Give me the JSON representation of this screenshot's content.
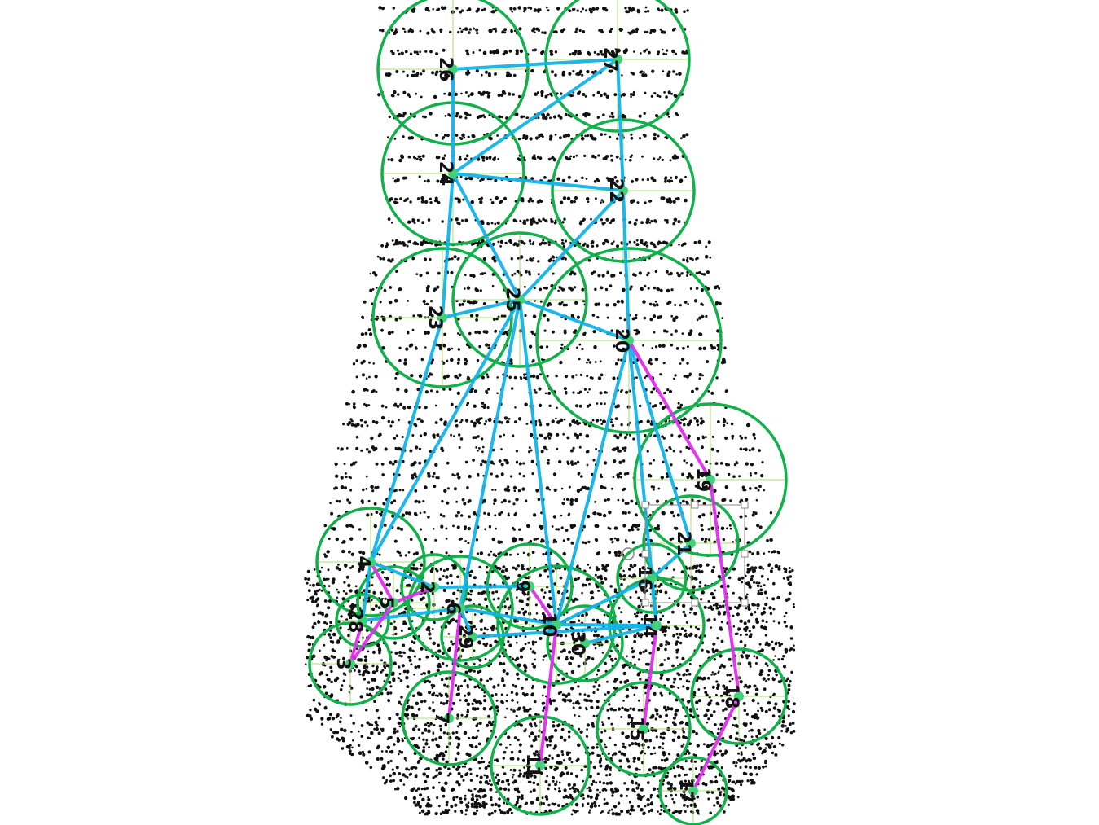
{
  "colors": {
    "circle": "#12b04a",
    "crosshair": "#a8e06a",
    "edge_blue": "#12b4ea",
    "edge_magenta": "#e02ef0",
    "dot": "#111111",
    "node": "#3fd27a",
    "selection": "#888888"
  },
  "nodes": [
    {
      "id": "n26",
      "label": "26"
    },
    {
      "id": "n27",
      "label": "27"
    },
    {
      "id": "n24",
      "label": "24"
    },
    {
      "id": "n25",
      "label": "25"
    },
    {
      "id": "n22",
      "label": "22"
    },
    {
      "id": "n23",
      "label": "23"
    },
    {
      "id": "n20",
      "label": "20"
    },
    {
      "id": "n19",
      "label": "19"
    },
    {
      "id": "n21",
      "label": "21"
    },
    {
      "id": "n4",
      "label": "4"
    },
    {
      "id": "n5",
      "label": "5"
    },
    {
      "id": "n28",
      "label": "28"
    },
    {
      "id": "n3",
      "label": "3"
    },
    {
      "id": "n2",
      "label": "2"
    },
    {
      "id": "n6",
      "label": "6"
    },
    {
      "id": "n29",
      "label": "29"
    },
    {
      "id": "n9",
      "label": "9"
    },
    {
      "id": "n10",
      "label": "10"
    },
    {
      "id": "n30",
      "label": "30"
    },
    {
      "id": "n16",
      "label": "16"
    },
    {
      "id": "n14",
      "label": "14"
    },
    {
      "id": "n7",
      "label": "7"
    },
    {
      "id": "n11",
      "label": "11"
    },
    {
      "id": "n15",
      "label": "15"
    },
    {
      "id": "n18",
      "label": "18"
    },
    {
      "id": "n17",
      "label": "17"
    }
  ],
  "edges_blue": [
    [
      "n26",
      "n27"
    ],
    [
      "n26",
      "n24"
    ],
    [
      "n27",
      "n24"
    ],
    [
      "n27",
      "n22"
    ],
    [
      "n24",
      "n22"
    ],
    [
      "n24",
      "n25"
    ],
    [
      "n24",
      "n23"
    ],
    [
      "n22",
      "n25"
    ],
    [
      "n22",
      "n20"
    ],
    [
      "n25",
      "n23"
    ],
    [
      "n25",
      "n20"
    ],
    [
      "n25",
      "n4"
    ],
    [
      "n25",
      "n6"
    ],
    [
      "n25",
      "n10"
    ],
    [
      "n23",
      "n4"
    ],
    [
      "n20",
      "n21"
    ],
    [
      "n20",
      "n14"
    ],
    [
      "n20",
      "n10"
    ],
    [
      "n4",
      "n28"
    ],
    [
      "n4",
      "n2"
    ],
    [
      "n2",
      "n9"
    ],
    [
      "n6",
      "n10"
    ],
    [
      "n10",
      "n16"
    ],
    [
      "n10",
      "n14"
    ],
    [
      "n28",
      "n6"
    ],
    [
      "n29",
      "n14"
    ],
    [
      "n21",
      "n16"
    ],
    [
      "n16",
      "n14"
    ],
    [
      "n30",
      "n14"
    ],
    [
      "n6",
      "n29"
    ]
  ],
  "edges_magenta": [
    [
      "n20",
      "n19"
    ],
    [
      "n19",
      "n18"
    ],
    [
      "n18",
      "n17"
    ],
    [
      "n14",
      "n15"
    ],
    [
      "n10",
      "n11"
    ],
    [
      "n6",
      "n7"
    ],
    [
      "n4",
      "n5"
    ],
    [
      "n5",
      "n3"
    ],
    [
      "n28",
      "n3"
    ],
    [
      "n9",
      "n10"
    ],
    [
      "n2",
      "n5"
    ]
  ]
}
